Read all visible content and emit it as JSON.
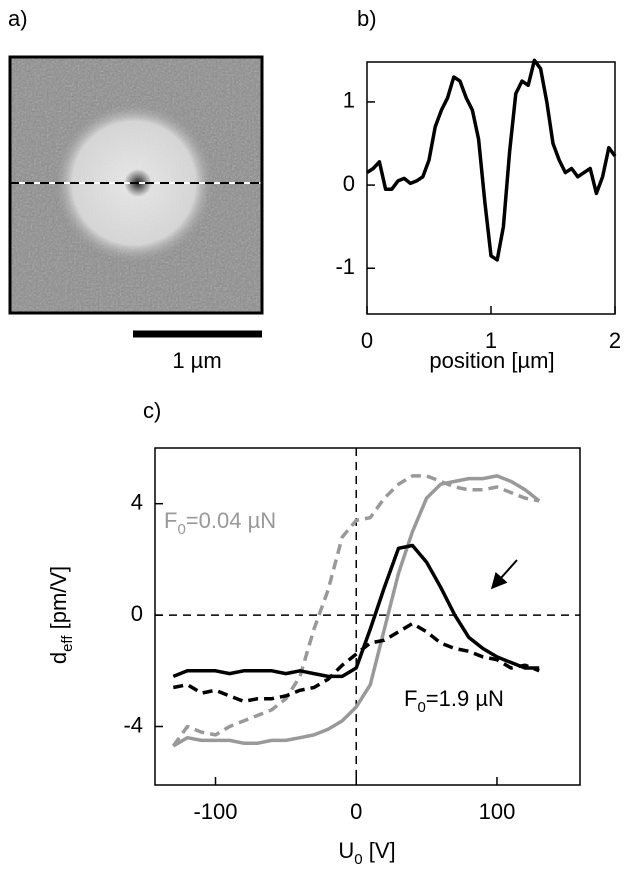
{
  "chart_data": [
    {
      "type": "image",
      "label": "a)",
      "scale_bar_label": "1 µm"
    },
    {
      "type": "line",
      "label": "b)",
      "xlabel": "position [µm]",
      "xlim": [
        0,
        2
      ],
      "ylim": [
        -1.55,
        1.48
      ],
      "xticks": [
        0,
        1,
        2
      ],
      "yticks": [
        -1,
        0,
        1
      ],
      "series": [
        {
          "color": "#000000",
          "style": "solid",
          "x": [
            0,
            0.05,
            0.1,
            0.15,
            0.2,
            0.25,
            0.3,
            0.35,
            0.4,
            0.45,
            0.5,
            0.55,
            0.6,
            0.65,
            0.7,
            0.75,
            0.8,
            0.85,
            0.9,
            0.95,
            1.0,
            1.05,
            1.1,
            1.15,
            1.2,
            1.25,
            1.3,
            1.35,
            1.4,
            1.45,
            1.5,
            1.55,
            1.6,
            1.65,
            1.7,
            1.75,
            1.8,
            1.85,
            1.9,
            1.95,
            2.0
          ],
          "values": [
            0.15,
            0.2,
            0.28,
            -0.05,
            -0.05,
            0.05,
            0.08,
            0.02,
            0.05,
            0.1,
            0.3,
            0.7,
            0.9,
            1.05,
            1.3,
            1.25,
            1.05,
            0.9,
            0.55,
            -0.2,
            -0.85,
            -0.9,
            -0.5,
            0.4,
            1.1,
            1.25,
            1.2,
            1.5,
            1.4,
            1.0,
            0.5,
            0.3,
            0.15,
            0.2,
            0.1,
            0.15,
            0.2,
            -0.1,
            0.1,
            0.45,
            0.35
          ]
        }
      ]
    },
    {
      "type": "line",
      "label": "c)",
      "xlabel": {
        "main": "U",
        "sub": "0",
        "rest": " [V]"
      },
      "ylabel": {
        "main": "d",
        "sub": "eff",
        "rest": " [pm/V]"
      },
      "xlim": [
        -143,
        159
      ],
      "ylim": [
        -6.1,
        6
      ],
      "xticks": [
        -100,
        0,
        100
      ],
      "yticks": [
        -4,
        0,
        4
      ],
      "zero_lines": true,
      "annotations": [
        {
          "main": "F",
          "sub": "0",
          "rest": "=0.04 µN",
          "color": "#999999"
        },
        {
          "main": "F",
          "sub": "0",
          "rest": "=1.9 µN",
          "color": "#000000"
        }
      ],
      "series": [
        {
          "color": "#999999",
          "style": "solid",
          "x": [
            -130,
            -120,
            -110,
            -100,
            -90,
            -80,
            -70,
            -60,
            -50,
            -40,
            -30,
            -20,
            -10,
            0,
            10,
            20,
            30,
            40,
            50,
            60,
            70,
            80,
            90,
            100,
            110,
            120,
            130
          ],
          "values": [
            -4.7,
            -4.4,
            -4.5,
            -4.5,
            -4.5,
            -4.6,
            -4.6,
            -4.5,
            -4.5,
            -4.4,
            -4.3,
            -4.1,
            -3.8,
            -3.3,
            -2.5,
            -0.5,
            1.5,
            3.0,
            4.2,
            4.7,
            4.8,
            4.9,
            4.9,
            5.0,
            4.8,
            4.5,
            4.1
          ]
        },
        {
          "color": "#999999",
          "style": "dashed",
          "x": [
            -130,
            -120,
            -110,
            -100,
            -90,
            -80,
            -70,
            -60,
            -50,
            -40,
            -30,
            -20,
            -10,
            0,
            10,
            20,
            30,
            40,
            50,
            60,
            70,
            80,
            90,
            100,
            110,
            120,
            130
          ],
          "values": [
            -4.7,
            -4.0,
            -4.2,
            -4.3,
            -4.0,
            -3.8,
            -3.6,
            -3.4,
            -3.0,
            -2.2,
            -0.5,
            0.9,
            2.8,
            3.4,
            3.5,
            4.2,
            4.7,
            5.0,
            5.0,
            4.8,
            4.6,
            4.5,
            4.5,
            4.6,
            4.4,
            4.2,
            4.1
          ]
        },
        {
          "color": "#000000",
          "style": "solid",
          "x": [
            -130,
            -120,
            -110,
            -100,
            -90,
            -80,
            -70,
            -60,
            -50,
            -40,
            -30,
            -20,
            -10,
            0,
            10,
            20,
            30,
            40,
            50,
            60,
            70,
            80,
            90,
            100,
            110,
            120,
            130
          ],
          "values": [
            -2.2,
            -2.0,
            -2.0,
            -2.0,
            -2.1,
            -2.0,
            -2.0,
            -2.0,
            -2.1,
            -2.0,
            -2.1,
            -2.2,
            -2.2,
            -1.9,
            -0.5,
            1.0,
            2.4,
            2.5,
            1.9,
            1.0,
            0.0,
            -0.8,
            -1.2,
            -1.5,
            -1.7,
            -1.9,
            -1.9
          ]
        },
        {
          "color": "#000000",
          "style": "dashed",
          "x": [
            -130,
            -120,
            -110,
            -100,
            -90,
            -80,
            -70,
            -60,
            -50,
            -40,
            -30,
            -20,
            -10,
            0,
            10,
            20,
            30,
            40,
            50,
            60,
            70,
            80,
            90,
            100,
            110,
            120,
            130
          ],
          "values": [
            -2.6,
            -2.5,
            -2.8,
            -2.7,
            -2.9,
            -3.1,
            -3.0,
            -3.0,
            -2.9,
            -2.7,
            -2.6,
            -2.3,
            -1.8,
            -1.4,
            -1.0,
            -0.9,
            -0.6,
            -0.3,
            -0.6,
            -1.0,
            -1.2,
            -1.3,
            -1.5,
            -1.6,
            -1.9,
            -1.8,
            -2.0
          ]
        }
      ]
    }
  ]
}
